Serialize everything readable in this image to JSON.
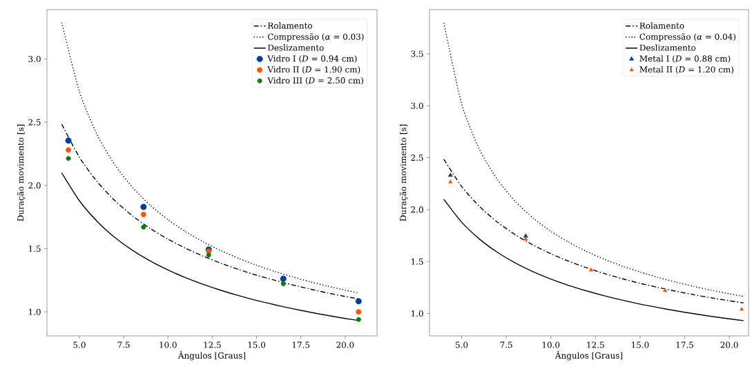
{
  "chart_data": [
    {
      "type": "line",
      "xlabel": "Ângulos [Graus]",
      "ylabel": "Duração movimento [s]",
      "xlim": [
        3.17,
        21.8
      ],
      "ylim": [
        0.81,
        3.39
      ],
      "xticks": [
        {
          "value": 5,
          "label": "5.0"
        },
        {
          "value": 7.5,
          "label": "7.5"
        },
        {
          "value": 10,
          "label": "10.0"
        },
        {
          "value": 12.5,
          "label": "12.5"
        },
        {
          "value": 15,
          "label": "15.0"
        },
        {
          "value": 17.5,
          "label": "17.5"
        },
        {
          "value": 20,
          "label": "20.0"
        }
      ],
      "yticks": [
        {
          "value": 1,
          "label": "1.0"
        },
        {
          "value": 1.5,
          "label": "1.5"
        },
        {
          "value": 2,
          "label": "2.0"
        },
        {
          "value": 2.5,
          "label": "2.5"
        },
        {
          "value": 3,
          "label": "3.0"
        }
      ],
      "legend": "top right",
      "series": [
        {
          "name": "Rolamento",
          "type": "line",
          "color": "#000000",
          "line_style": "dashdot",
          "x": [
            4,
            5,
            6,
            7,
            8,
            9,
            10,
            11,
            12,
            13,
            14,
            15,
            16,
            17,
            18,
            19,
            20,
            20.8
          ],
          "values": [
            2.485,
            2.223,
            2.03,
            1.88,
            1.759,
            1.659,
            1.575,
            1.503,
            1.44,
            1.384,
            1.335,
            1.29,
            1.251,
            1.214,
            1.181,
            1.15,
            1.122,
            1.102
          ]
        },
        {
          "name": "Compressão (*α* = 0.03)",
          "type": "line",
          "color": "#000000",
          "line_style": "dotted",
          "x": [
            4,
            5,
            6,
            7,
            8,
            9,
            10,
            11,
            12,
            13,
            14,
            15,
            16,
            17,
            18,
            19,
            20,
            20.8
          ],
          "values": [
            3.289,
            2.742,
            2.401,
            2.163,
            1.984,
            1.843,
            1.729,
            1.634,
            1.553,
            1.483,
            1.423,
            1.369,
            1.321,
            1.278,
            1.239,
            1.204,
            1.172,
            1.148
          ]
        },
        {
          "name": "Deslizamento",
          "type": "line",
          "color": "#000000",
          "line_style": "solid",
          "x": [
            4,
            5,
            6,
            7,
            8,
            9,
            10,
            11,
            12,
            13,
            14,
            15,
            16,
            17,
            18,
            19,
            20,
            20.8
          ],
          "values": [
            2.1,
            1.879,
            1.716,
            1.589,
            1.487,
            1.402,
            1.331,
            1.27,
            1.217,
            1.17,
            1.128,
            1.09,
            1.057,
            1.026,
            0.998,
            0.972,
            0.948,
            0.931
          ]
        },
        {
          "name": "Vidro I (*D* = 0.94 cm)",
          "type": "scatter",
          "marker": "circle",
          "color": "#003d99",
          "x": [
            4.38,
            8.62,
            12.3,
            16.51,
            20.76
          ],
          "values": [
            2.355,
            1.83,
            1.493,
            1.262,
            1.084
          ]
        },
        {
          "name": "Vidro II (*D* = 1.90 cm)",
          "type": "scatter",
          "marker": "circle",
          "color": "#ff5500",
          "x": [
            4.38,
            8.62,
            12.3,
            16.51,
            20.76
          ],
          "values": [
            2.28,
            1.77,
            1.48,
            null,
            1.0
          ]
        },
        {
          "name": "Vidro III (*D* = 2.50 cm)",
          "type": "scatter",
          "marker": "circle",
          "color": "#117711",
          "x": [
            4.38,
            8.62,
            12.3,
            16.51,
            20.76
          ],
          "values": [
            2.213,
            1.67,
            1.449,
            1.222,
            0.94
          ]
        }
      ]
    },
    {
      "type": "line",
      "xlabel": "Ângulos [Graus]",
      "ylabel": "Duração movimento [s]",
      "xlim": [
        3.2,
        21.08
      ],
      "ylim": [
        0.784,
        3.925
      ],
      "xticks": [
        {
          "value": 5,
          "label": "5.0"
        },
        {
          "value": 7.5,
          "label": "7.5"
        },
        {
          "value": 10,
          "label": "10.0"
        },
        {
          "value": 12.5,
          "label": "12.5"
        },
        {
          "value": 15,
          "label": "15.0"
        },
        {
          "value": 17.5,
          "label": "17.5"
        },
        {
          "value": 20,
          "label": "20.0"
        }
      ],
      "yticks": [
        {
          "value": 1,
          "label": "1.0"
        },
        {
          "value": 1.5,
          "label": "1.5"
        },
        {
          "value": 2,
          "label": "2.0"
        },
        {
          "value": 2.5,
          "label": "2.5"
        },
        {
          "value": 3,
          "label": "3.0"
        },
        {
          "value": 3.5,
          "label": "3.5"
        }
      ],
      "legend": "top right",
      "series": [
        {
          "name": "Rolamento",
          "type": "line",
          "color": "#000000",
          "line_style": "dashdot",
          "x": [
            4,
            5,
            6,
            7,
            8,
            9,
            10,
            11,
            12,
            13,
            14,
            15,
            16,
            17,
            18,
            19,
            20,
            20.8
          ],
          "values": [
            2.485,
            2.223,
            2.03,
            1.88,
            1.759,
            1.659,
            1.575,
            1.503,
            1.44,
            1.384,
            1.335,
            1.29,
            1.251,
            1.214,
            1.181,
            1.15,
            1.122,
            1.102
          ]
        },
        {
          "name": "Compressão (*α* = 0.04)",
          "type": "line",
          "color": "#000000",
          "line_style": "dotted",
          "x": [
            4,
            5,
            6,
            7,
            8,
            9,
            10,
            11,
            12,
            13,
            14,
            15,
            16,
            17,
            18,
            19,
            20,
            20.8
          ],
          "values": [
            3.798,
            3.017,
            2.579,
            2.29,
            2.08,
            1.919,
            1.791,
            1.686,
            1.597,
            1.522,
            1.456,
            1.399,
            1.348,
            1.302,
            1.261,
            1.223,
            1.189,
            1.164
          ]
        },
        {
          "name": "Deslizamento",
          "type": "line",
          "color": "#000000",
          "line_style": "solid",
          "x": [
            4,
            5,
            6,
            7,
            8,
            9,
            10,
            11,
            12,
            13,
            14,
            15,
            16,
            17,
            18,
            19,
            20,
            20.8
          ],
          "values": [
            2.1,
            1.879,
            1.716,
            1.589,
            1.487,
            1.402,
            1.331,
            1.27,
            1.217,
            1.17,
            1.128,
            1.09,
            1.057,
            1.026,
            0.998,
            0.972,
            0.948,
            0.931
          ]
        },
        {
          "name": "Metal I (*D* = 0.88 cm)",
          "type": "scatter",
          "marker": "triangle",
          "color": "#003d99",
          "x": [
            4.37,
            8.59
          ],
          "values": [
            2.33,
            1.745
          ]
        },
        {
          "name": "Metal II (*D* = 1.20 cm)",
          "type": "scatter",
          "marker": "triangle",
          "color": "#ff5500",
          "x": [
            4.37,
            8.59,
            12.25,
            16.4,
            20.7
          ],
          "values": [
            2.266,
            1.716,
            1.418,
            1.22,
            1.04
          ]
        }
      ]
    }
  ]
}
